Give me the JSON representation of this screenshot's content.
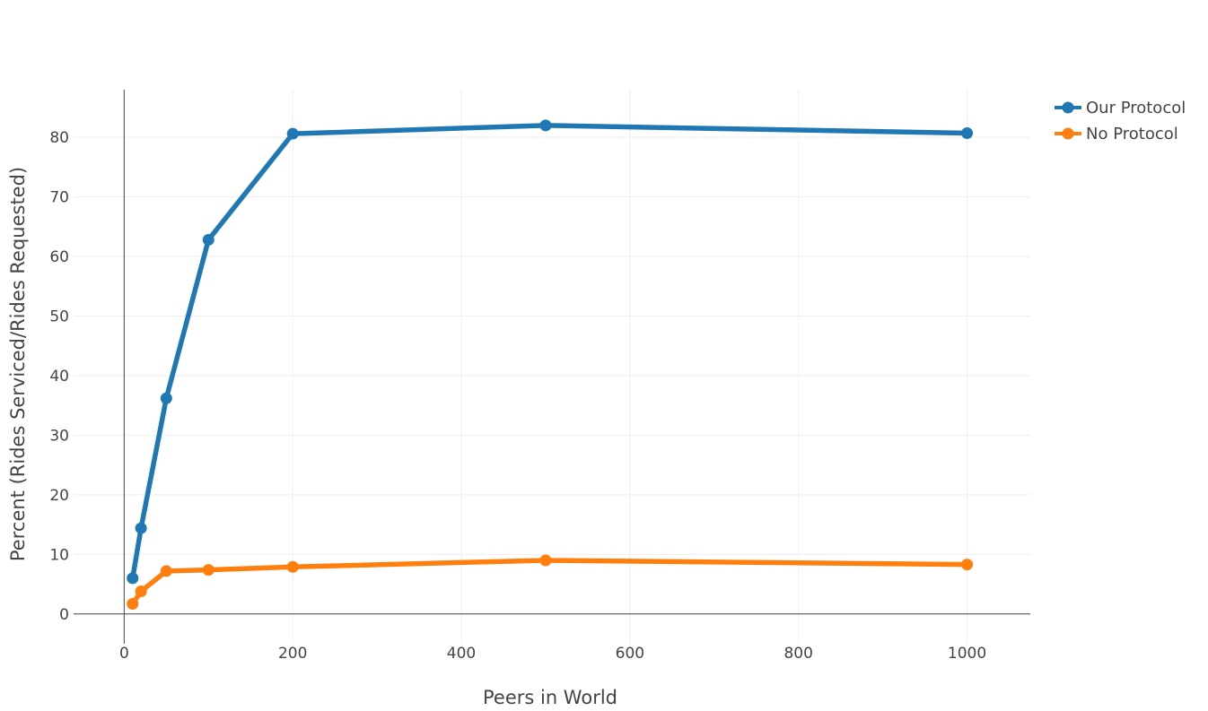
{
  "chart_data": {
    "type": "line",
    "xlabel": "Peers in World",
    "ylabel": "Percent (Rides Serviced/Rides Requested)",
    "xlim": [
      -60,
      1075
    ],
    "ylim": [
      -5,
      88
    ],
    "xticks": [
      0,
      200,
      400,
      600,
      800,
      1000
    ],
    "yticks": [
      0,
      10,
      20,
      30,
      40,
      50,
      60,
      70,
      80
    ],
    "grid": true,
    "legend_position": "top-right",
    "x": [
      10,
      20,
      50,
      100,
      200,
      500,
      1000
    ],
    "series": [
      {
        "name": "Our Protocol",
        "color": "#1f77b4",
        "values": [
          6.0,
          14.4,
          36.2,
          62.8,
          80.6,
          82.0,
          80.7
        ]
      },
      {
        "name": "No Protocol",
        "color": "#ff7f0e",
        "values": [
          1.7,
          3.8,
          7.2,
          7.4,
          7.9,
          9.0,
          8.3
        ]
      }
    ]
  }
}
